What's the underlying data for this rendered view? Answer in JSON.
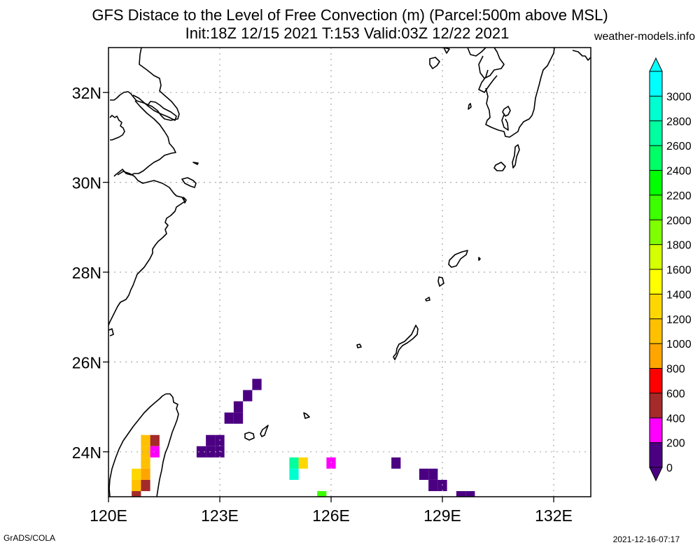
{
  "header": {
    "title_line1": "GFS Distace to the Level of Free Convection (m) (Parcel:500m above MSL)",
    "title_line2": "Init:18Z 12/15 2021 T:153 Valid:03Z 12/22 2021",
    "site": "weather-models.info"
  },
  "footer": {
    "left": "GrADS/COLA",
    "right": "2021-12-16-07:17"
  },
  "chart_data": {
    "type": "heatmap",
    "title": "GFS Distace to the Level of Free Convection (m) (Parcel:500m above MSL)",
    "subtitle": "Init:18Z 12/15 2021 T:153 Valid:03Z 12/22 2021",
    "xlabel": "",
    "ylabel": "",
    "xlim": [
      120,
      133
    ],
    "ylim": [
      23,
      33
    ],
    "grid": true,
    "x_ticks": [
      120,
      123,
      126,
      129,
      132
    ],
    "x_tick_labels": [
      "120E",
      "123E",
      "126E",
      "129E",
      "132E"
    ],
    "y_ticks": [
      24,
      26,
      28,
      30,
      32
    ],
    "y_tick_labels": [
      "24N",
      "26N",
      "28N",
      "30N",
      "32N"
    ],
    "colorbar": {
      "levels": [
        0,
        200,
        400,
        600,
        800,
        1000,
        1200,
        1400,
        1600,
        1800,
        2000,
        2200,
        2400,
        2600,
        2800,
        3000
      ],
      "labels": [
        "0",
        "200",
        "400",
        "600",
        "800",
        "1000",
        "1200",
        "1400",
        "1600",
        "1800",
        "2000",
        "2200",
        "2400",
        "2600",
        "2800",
        "3000"
      ],
      "colors": [
        "#4b0082",
        "#ff00ff",
        "#a52a2a",
        "#ff0000",
        "#ffa500",
        "#ffc000",
        "#ffd700",
        "#ffff00",
        "#d4ff00",
        "#7fff00",
        "#3cff00",
        "#00ff00",
        "#00ff66",
        "#00ffa0",
        "#00ffd0",
        "#00ffff"
      ],
      "under_color": "#4b0082",
      "over_color": "#00ffff",
      "placement": "right"
    },
    "cells": [
      {
        "lon": 121.0,
        "lat": 24.25,
        "v": 1000
      },
      {
        "lon": 121.0,
        "lat": 24.0,
        "v": 1100
      },
      {
        "lon": 121.25,
        "lat": 24.25,
        "v": 500
      },
      {
        "lon": 121.25,
        "lat": 24.0,
        "v": 300
      },
      {
        "lon": 121.0,
        "lat": 23.75,
        "v": 1000
      },
      {
        "lon": 120.75,
        "lat": 23.5,
        "v": 1200
      },
      {
        "lon": 120.75,
        "lat": 23.25,
        "v": 1000
      },
      {
        "lon": 121.0,
        "lat": 23.5,
        "v": 900
      },
      {
        "lon": 121.0,
        "lat": 23.25,
        "v": 500
      },
      {
        "lon": 120.75,
        "lat": 23.0,
        "v": 500
      },
      {
        "lon": 122.5,
        "lat": 24.0,
        "v": 100
      },
      {
        "lon": 122.75,
        "lat": 24.0,
        "v": 100
      },
      {
        "lon": 122.75,
        "lat": 24.25,
        "v": 100
      },
      {
        "lon": 123.0,
        "lat": 24.0,
        "v": 100
      },
      {
        "lon": 123.0,
        "lat": 24.25,
        "v": 100
      },
      {
        "lon": 123.25,
        "lat": 24.75,
        "v": 100
      },
      {
        "lon": 123.5,
        "lat": 24.75,
        "v": 100
      },
      {
        "lon": 123.5,
        "lat": 25.0,
        "v": 100
      },
      {
        "lon": 123.75,
        "lat": 25.25,
        "v": 100
      },
      {
        "lon": 124.0,
        "lat": 25.5,
        "v": 100
      },
      {
        "lon": 125.0,
        "lat": 23.75,
        "v": 2700
      },
      {
        "lon": 125.0,
        "lat": 23.5,
        "v": 2900
      },
      {
        "lon": 125.25,
        "lat": 23.75,
        "v": 1200
      },
      {
        "lon": 125.75,
        "lat": 23.0,
        "v": 2000
      },
      {
        "lon": 126.0,
        "lat": 23.75,
        "v": 300
      },
      {
        "lon": 127.75,
        "lat": 23.75,
        "v": 100
      },
      {
        "lon": 128.5,
        "lat": 23.5,
        "v": 100
      },
      {
        "lon": 128.75,
        "lat": 23.5,
        "v": 100
      },
      {
        "lon": 128.75,
        "lat": 23.25,
        "v": 100
      },
      {
        "lon": 129.0,
        "lat": 23.25,
        "v": 100
      },
      {
        "lon": 129.5,
        "lat": 23.0,
        "v": 150
      },
      {
        "lon": 129.75,
        "lat": 23.0,
        "v": 150
      }
    ]
  }
}
